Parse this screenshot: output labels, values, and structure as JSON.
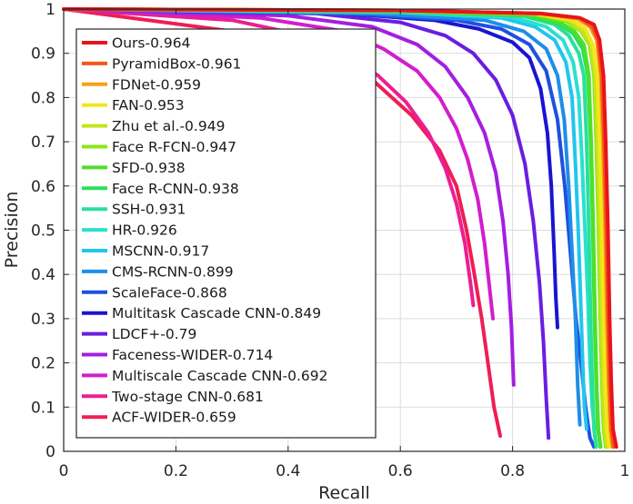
{
  "chart_data": {
    "type": "line",
    "title": "",
    "xlabel": "Recall",
    "ylabel": "Precision",
    "xlim": [
      0,
      1
    ],
    "ylim": [
      0,
      1
    ],
    "xticks": [
      "0",
      "0.2",
      "0.4",
      "0.6",
      "0.8",
      "1"
    ],
    "yticks": [
      "0",
      "0.1",
      "0.2",
      "0.3",
      "0.4",
      "0.5",
      "0.6",
      "0.7",
      "0.8",
      "0.9",
      "1"
    ],
    "grid": true,
    "legend_position": "top-left",
    "series": [
      {
        "name": "Ours-0.964",
        "color": "#e8141c",
        "points": [
          [
            0,
            1
          ],
          [
            0.6,
            0.997
          ],
          [
            0.85,
            0.99
          ],
          [
            0.92,
            0.98
          ],
          [
            0.945,
            0.965
          ],
          [
            0.955,
            0.93
          ],
          [
            0.962,
            0.85
          ],
          [
            0.966,
            0.7
          ],
          [
            0.97,
            0.5
          ],
          [
            0.973,
            0.3
          ],
          [
            0.976,
            0.15
          ],
          [
            0.979,
            0.05
          ],
          [
            0.985,
            0.01
          ]
        ]
      },
      {
        "name": "PyramidBox-0.961",
        "color": "#f4551a",
        "points": [
          [
            0,
            1
          ],
          [
            0.6,
            0.997
          ],
          [
            0.85,
            0.99
          ],
          [
            0.92,
            0.98
          ],
          [
            0.942,
            0.96
          ],
          [
            0.952,
            0.93
          ],
          [
            0.959,
            0.85
          ],
          [
            0.963,
            0.7
          ],
          [
            0.967,
            0.5
          ],
          [
            0.97,
            0.3
          ],
          [
            0.973,
            0.15
          ],
          [
            0.976,
            0.05
          ],
          [
            0.98,
            0.01
          ]
        ]
      },
      {
        "name": "FDNet-0.959",
        "color": "#f9a011",
        "points": [
          [
            0,
            1
          ],
          [
            0.6,
            0.997
          ],
          [
            0.85,
            0.99
          ],
          [
            0.915,
            0.978
          ],
          [
            0.938,
            0.96
          ],
          [
            0.95,
            0.93
          ],
          [
            0.957,
            0.85
          ],
          [
            0.961,
            0.7
          ],
          [
            0.965,
            0.5
          ],
          [
            0.968,
            0.3
          ],
          [
            0.971,
            0.15
          ],
          [
            0.974,
            0.05
          ],
          [
            0.978,
            0.01
          ]
        ]
      },
      {
        "name": "FAN-0.953",
        "color": "#f2e61c",
        "points": [
          [
            0,
            1
          ],
          [
            0.6,
            0.997
          ],
          [
            0.84,
            0.99
          ],
          [
            0.905,
            0.976
          ],
          [
            0.93,
            0.955
          ],
          [
            0.943,
            0.92
          ],
          [
            0.951,
            0.85
          ],
          [
            0.955,
            0.7
          ],
          [
            0.959,
            0.5
          ],
          [
            0.962,
            0.3
          ],
          [
            0.965,
            0.15
          ],
          [
            0.968,
            0.05
          ],
          [
            0.972,
            0.01
          ]
        ]
      },
      {
        "name": "Zhu et al.-0.949",
        "color": "#c2e61c",
        "points": [
          [
            0,
            1
          ],
          [
            0.6,
            0.997
          ],
          [
            0.84,
            0.99
          ],
          [
            0.9,
            0.975
          ],
          [
            0.925,
            0.95
          ],
          [
            0.939,
            0.92
          ],
          [
            0.947,
            0.85
          ],
          [
            0.951,
            0.7
          ],
          [
            0.955,
            0.5
          ],
          [
            0.958,
            0.3
          ],
          [
            0.961,
            0.15
          ],
          [
            0.964,
            0.05
          ],
          [
            0.968,
            0.01
          ]
        ]
      },
      {
        "name": "Face R-FCN-0.947",
        "color": "#8ce61c",
        "points": [
          [
            0,
            1
          ],
          [
            0.6,
            0.996
          ],
          [
            0.84,
            0.988
          ],
          [
            0.895,
            0.973
          ],
          [
            0.922,
            0.95
          ],
          [
            0.937,
            0.92
          ],
          [
            0.945,
            0.85
          ],
          [
            0.949,
            0.7
          ],
          [
            0.953,
            0.5
          ],
          [
            0.956,
            0.3
          ],
          [
            0.959,
            0.15
          ],
          [
            0.962,
            0.05
          ],
          [
            0.966,
            0.01
          ]
        ]
      },
      {
        "name": "SFD-0.938",
        "color": "#4ee02a",
        "points": [
          [
            0,
            1
          ],
          [
            0.6,
            0.996
          ],
          [
            0.83,
            0.988
          ],
          [
            0.885,
            0.97
          ],
          [
            0.91,
            0.95
          ],
          [
            0.927,
            0.92
          ],
          [
            0.936,
            0.85
          ],
          [
            0.94,
            0.7
          ],
          [
            0.944,
            0.5
          ],
          [
            0.947,
            0.3
          ],
          [
            0.95,
            0.15
          ],
          [
            0.953,
            0.05
          ],
          [
            0.957,
            0.01
          ]
        ]
      },
      {
        "name": "Face R-CNN-0.938",
        "color": "#2ae05a",
        "points": [
          [
            0,
            1
          ],
          [
            0.6,
            0.995
          ],
          [
            0.82,
            0.985
          ],
          [
            0.88,
            0.968
          ],
          [
            0.908,
            0.945
          ],
          [
            0.925,
            0.91
          ],
          [
            0.934,
            0.85
          ],
          [
            0.939,
            0.7
          ],
          [
            0.943,
            0.5
          ],
          [
            0.946,
            0.3
          ],
          [
            0.949,
            0.15
          ],
          [
            0.952,
            0.05
          ],
          [
            0.956,
            0.01
          ]
        ]
      },
      {
        "name": "SSH-0.931",
        "color": "#2ae09a",
        "points": [
          [
            0,
            1
          ],
          [
            0.6,
            0.994
          ],
          [
            0.82,
            0.984
          ],
          [
            0.875,
            0.965
          ],
          [
            0.9,
            0.94
          ],
          [
            0.918,
            0.9
          ],
          [
            0.927,
            0.85
          ],
          [
            0.932,
            0.7
          ],
          [
            0.936,
            0.5
          ],
          [
            0.939,
            0.3
          ],
          [
            0.942,
            0.15
          ],
          [
            0.945,
            0.05
          ],
          [
            0.949,
            0.01
          ]
        ]
      },
      {
        "name": "HR-0.926",
        "color": "#2ae0d0",
        "points": [
          [
            0,
            1
          ],
          [
            0.6,
            0.993
          ],
          [
            0.8,
            0.982
          ],
          [
            0.86,
            0.96
          ],
          [
            0.89,
            0.93
          ],
          [
            0.908,
            0.88
          ],
          [
            0.918,
            0.8
          ],
          [
            0.924,
            0.65
          ],
          [
            0.929,
            0.5
          ],
          [
            0.934,
            0.35
          ],
          [
            0.938,
            0.2
          ],
          [
            0.942,
            0.1
          ],
          [
            0.946,
            0.05
          ]
        ]
      },
      {
        "name": "MSCNN-0.917",
        "color": "#22c6ec",
        "points": [
          [
            0,
            1
          ],
          [
            0.6,
            0.992
          ],
          [
            0.78,
            0.98
          ],
          [
            0.84,
            0.96
          ],
          [
            0.875,
            0.93
          ],
          [
            0.895,
            0.88
          ],
          [
            0.906,
            0.8
          ],
          [
            0.912,
            0.65
          ],
          [
            0.917,
            0.5
          ],
          [
            0.921,
            0.35
          ],
          [
            0.925,
            0.2
          ],
          [
            0.928,
            0.1
          ],
          [
            0.932,
            0.05
          ]
        ]
      },
      {
        "name": "CMS-RCNN-0.899",
        "color": "#1e8ee8",
        "points": [
          [
            0,
            1
          ],
          [
            0.55,
            0.99
          ],
          [
            0.75,
            0.975
          ],
          [
            0.82,
            0.95
          ],
          [
            0.86,
            0.91
          ],
          [
            0.88,
            0.85
          ],
          [
            0.892,
            0.75
          ],
          [
            0.9,
            0.6
          ],
          [
            0.906,
            0.45
          ],
          [
            0.912,
            0.3
          ],
          [
            0.916,
            0.15
          ],
          [
            0.92,
            0.06
          ]
        ]
      },
      {
        "name": "ScaleFace-0.868",
        "color": "#1e50e0",
        "points": [
          [
            0,
            1
          ],
          [
            0.5,
            0.99
          ],
          [
            0.7,
            0.975
          ],
          [
            0.78,
            0.955
          ],
          [
            0.83,
            0.92
          ],
          [
            0.86,
            0.86
          ],
          [
            0.88,
            0.75
          ],
          [
            0.893,
            0.6
          ],
          [
            0.903,
            0.45
          ],
          [
            0.913,
            0.3
          ],
          [
            0.922,
            0.2
          ],
          [
            0.93,
            0.1
          ],
          [
            0.938,
            0.03
          ],
          [
            0.945,
            0.01
          ]
        ]
      },
      {
        "name": "Multitask Cascade CNN-0.849",
        "color": "#1a14d0",
        "points": [
          [
            0,
            1
          ],
          [
            0.5,
            0.99
          ],
          [
            0.66,
            0.975
          ],
          [
            0.74,
            0.955
          ],
          [
            0.8,
            0.925
          ],
          [
            0.83,
            0.89
          ],
          [
            0.85,
            0.82
          ],
          [
            0.862,
            0.72
          ],
          [
            0.869,
            0.6
          ],
          [
            0.874,
            0.45
          ],
          [
            0.877,
            0.35
          ],
          [
            0.88,
            0.28
          ]
        ]
      },
      {
        "name": "LDCF+-0.79",
        "color": "#6a1ee0",
        "points": [
          [
            0,
            1
          ],
          [
            0.45,
            0.99
          ],
          [
            0.6,
            0.97
          ],
          [
            0.68,
            0.94
          ],
          [
            0.73,
            0.9
          ],
          [
            0.77,
            0.84
          ],
          [
            0.8,
            0.76
          ],
          [
            0.822,
            0.65
          ],
          [
            0.837,
            0.52
          ],
          [
            0.848,
            0.38
          ],
          [
            0.855,
            0.25
          ],
          [
            0.86,
            0.12
          ],
          [
            0.864,
            0.03
          ]
        ]
      },
      {
        "name": "Faceness-WIDER-0.714",
        "color": "#a41ee0",
        "points": [
          [
            0,
            1
          ],
          [
            0.4,
            0.985
          ],
          [
            0.55,
            0.96
          ],
          [
            0.63,
            0.92
          ],
          [
            0.68,
            0.87
          ],
          [
            0.72,
            0.8
          ],
          [
            0.75,
            0.72
          ],
          [
            0.77,
            0.63
          ],
          [
            0.783,
            0.52
          ],
          [
            0.792,
            0.4
          ],
          [
            0.798,
            0.28
          ],
          [
            0.802,
            0.15
          ]
        ]
      },
      {
        "name": "Multiscale Cascade CNN-0.692",
        "color": "#d21ecc",
        "points": [
          [
            0,
            1
          ],
          [
            0.35,
            0.98
          ],
          [
            0.5,
            0.95
          ],
          [
            0.57,
            0.91
          ],
          [
            0.63,
            0.86
          ],
          [
            0.67,
            0.8
          ],
          [
            0.7,
            0.73
          ],
          [
            0.72,
            0.66
          ],
          [
            0.738,
            0.57
          ],
          [
            0.75,
            0.47
          ],
          [
            0.758,
            0.38
          ],
          [
            0.765,
            0.3
          ]
        ]
      },
      {
        "name": "Two-stage CNN-0.681",
        "color": "#ec1e92",
        "points": [
          [
            0,
            1
          ],
          [
            0.3,
            0.975
          ],
          [
            0.43,
            0.94
          ],
          [
            0.5,
            0.9
          ],
          [
            0.56,
            0.85
          ],
          [
            0.61,
            0.79
          ],
          [
            0.65,
            0.72
          ],
          [
            0.68,
            0.64
          ],
          [
            0.7,
            0.56
          ],
          [
            0.715,
            0.47
          ],
          [
            0.725,
            0.38
          ],
          [
            0.73,
            0.33
          ]
        ]
      },
      {
        "name": "ACF-WIDER-0.659",
        "color": "#ee1e55",
        "points": [
          [
            0,
            1
          ],
          [
            0.3,
            0.95
          ],
          [
            0.45,
            0.9
          ],
          [
            0.55,
            0.84
          ],
          [
            0.62,
            0.76
          ],
          [
            0.67,
            0.68
          ],
          [
            0.7,
            0.6
          ],
          [
            0.718,
            0.5
          ],
          [
            0.732,
            0.4
          ],
          [
            0.745,
            0.3
          ],
          [
            0.756,
            0.2
          ],
          [
            0.767,
            0.1
          ],
          [
            0.778,
            0.035
          ]
        ]
      }
    ]
  }
}
